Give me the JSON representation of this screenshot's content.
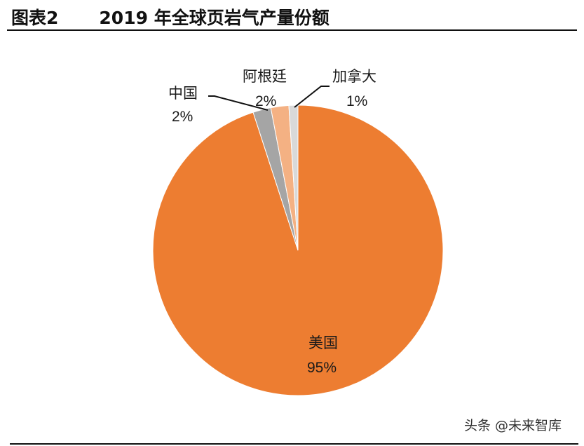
{
  "header": {
    "figure_number": "图表2",
    "title": "2019 年全球页岩气产量份额"
  },
  "watermark": "头条 @未来智库",
  "chart_data": {
    "type": "pie",
    "title": "2019 年全球页岩气产量份额",
    "categories": [
      "美国",
      "中国",
      "阿根廷",
      "加拿大"
    ],
    "values": [
      95,
      2,
      2,
      1
    ],
    "labels": [
      "95%",
      "2%",
      "2%",
      "1%"
    ],
    "colors": [
      "#ED7D31",
      "#A5A5A5",
      "#F4B183",
      "#D9D9D9"
    ],
    "start_angle_deg": 0,
    "direction": "clockwise",
    "legend": "none",
    "data_labels": "category and percentage, with leader lines for small slices"
  },
  "labels": {
    "usa": {
      "name": "美国",
      "pct": "95%"
    },
    "china": {
      "name": "中国",
      "pct": "2%"
    },
    "argentina": {
      "name": "阿根廷",
      "pct": "2%"
    },
    "canada": {
      "name": "加拿大",
      "pct": "1%"
    }
  }
}
